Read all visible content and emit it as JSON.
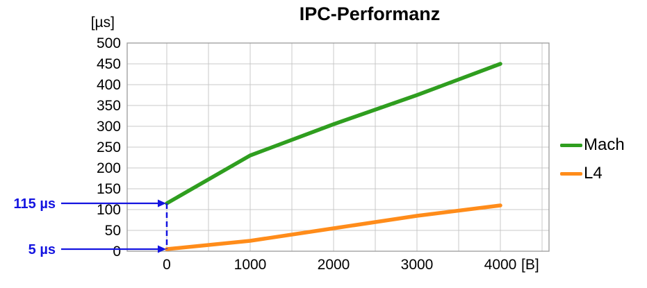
{
  "chart_data": {
    "type": "line",
    "title": "IPC-Performanz",
    "ylabel": "[µs]",
    "xlabel": "[B]",
    "x": [
      0,
      1000,
      2000,
      3000,
      4000
    ],
    "series": [
      {
        "name": "Mach",
        "color": "#2f9e1f",
        "values": [
          115,
          230,
          305,
          375,
          450
        ]
      },
      {
        "name": "L4",
        "color": "#ff8c1a",
        "values": [
          5,
          25,
          55,
          85,
          110
        ]
      }
    ],
    "ylim": [
      0,
      500
    ],
    "ytick_step": 50,
    "xtick_step": 1000,
    "xgrid_step": 500,
    "grid": true,
    "legend_position": "right",
    "annotations": [
      {
        "label": "115 µs",
        "target_x": 0,
        "target_y": 115
      },
      {
        "label": "5 µs",
        "target_x": 0,
        "target_y": 5
      }
    ],
    "connector": {
      "x": 0,
      "from_y": 115,
      "to_y": 5,
      "style": "dashed"
    },
    "annotation_color": "#1414e0",
    "grid_color": "#c9c9c9",
    "border_color": "#9b9b9b",
    "text_color": "#000000"
  }
}
